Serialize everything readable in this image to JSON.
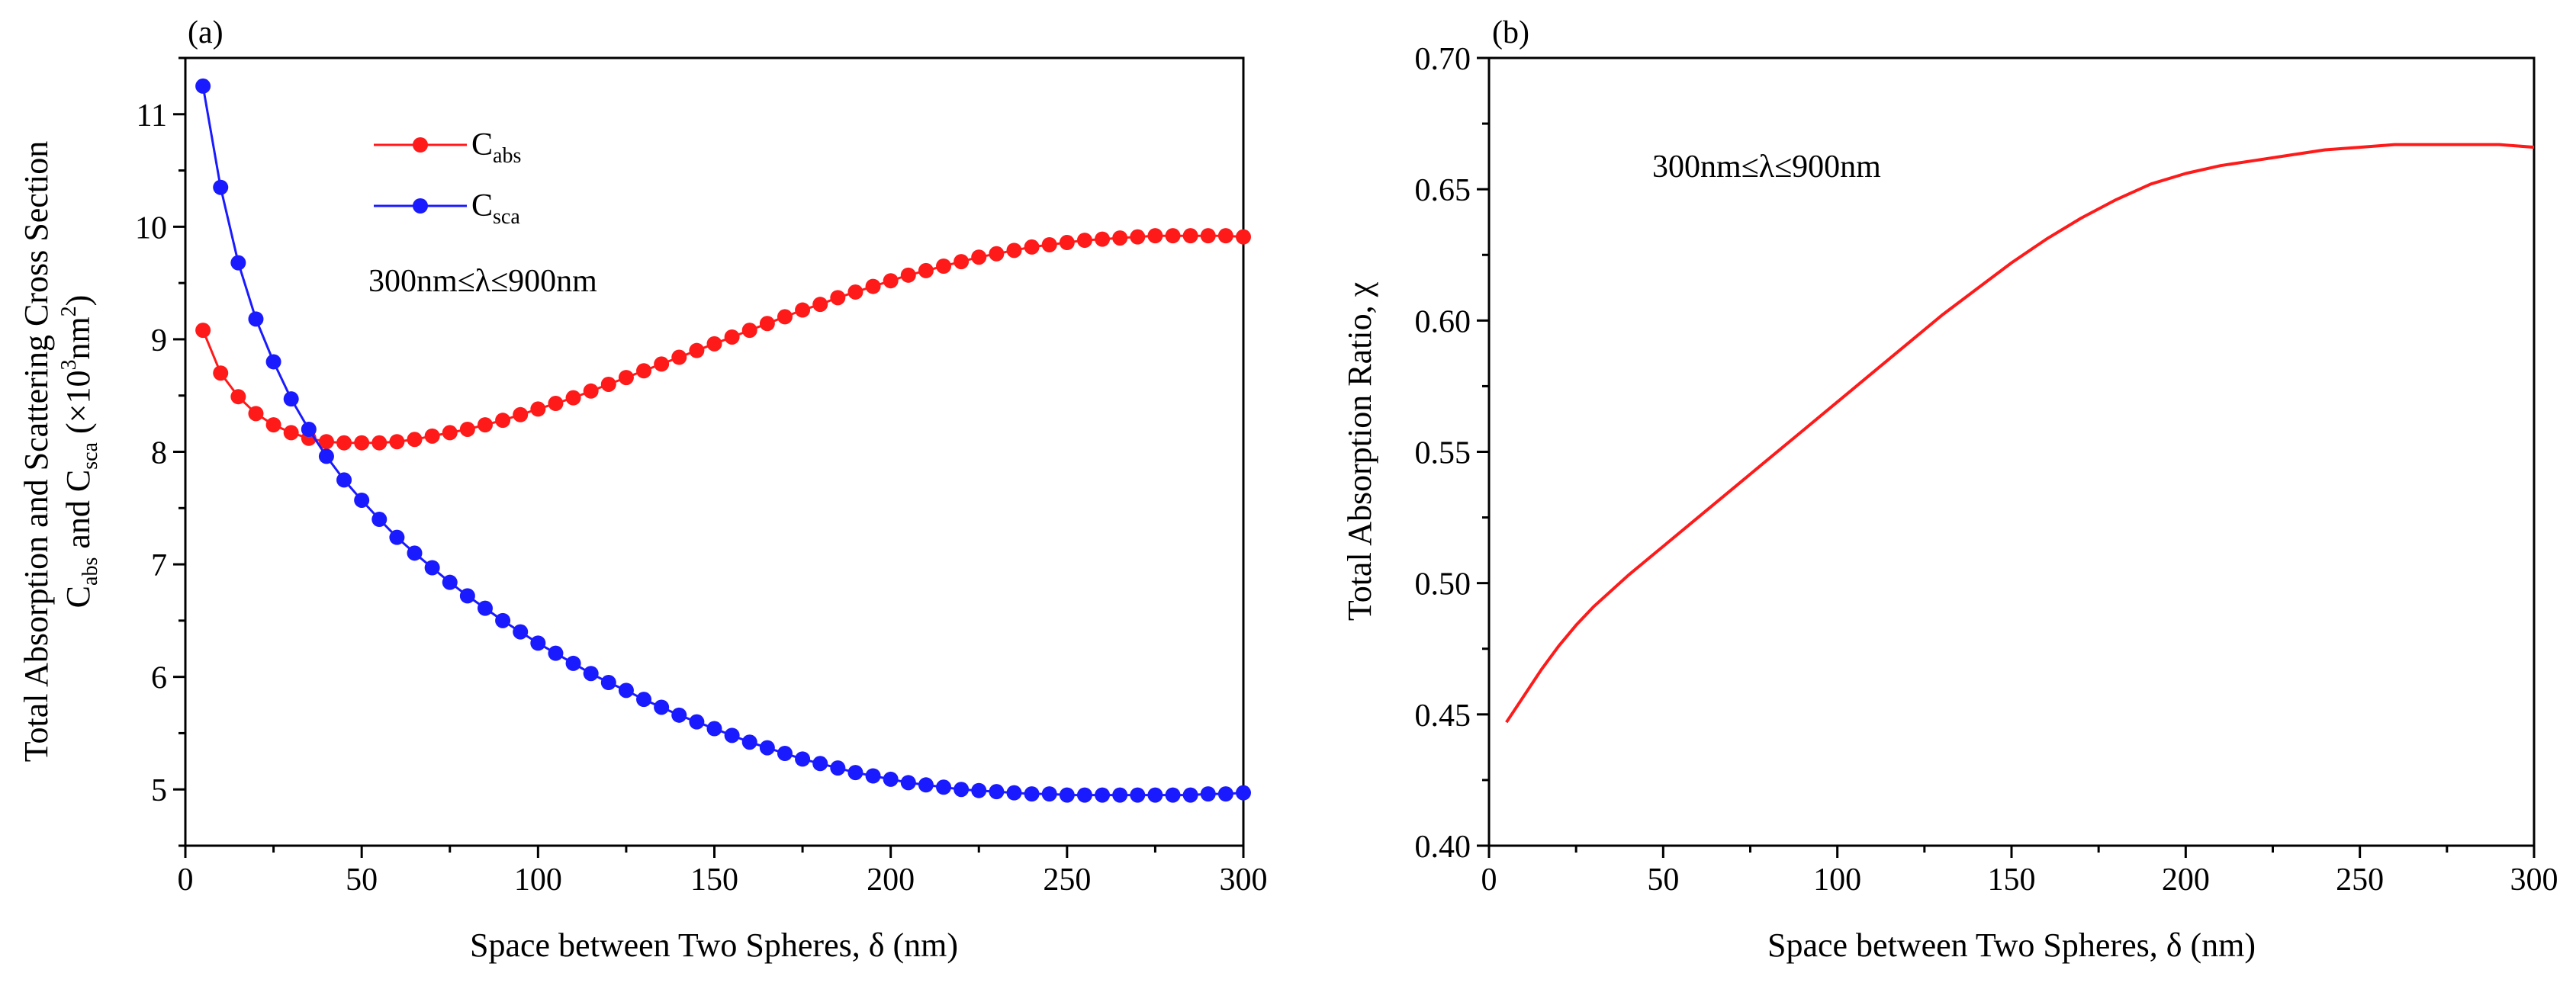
{
  "chart_data": [
    {
      "type": "line",
      "panel": "(a)",
      "xlabel": "Space between Two Spheres, δ (nm)",
      "ylabel_line1": "Total Absorption and Scattering Cross Section",
      "ylabel_line2": {
        "c1": "C",
        "s1": "abs",
        "and": " and C",
        "s2": "sca",
        "units_open": " (×10",
        "exp1": "3",
        "nm": "nm",
        "exp2": "2",
        "units_close": ")"
      },
      "xlim": [
        0,
        300
      ],
      "ylim": [
        4.5,
        11.5
      ],
      "xticks": [
        0,
        50,
        100,
        150,
        200,
        250,
        300
      ],
      "yticks": [
        5,
        6,
        7,
        8,
        9,
        10,
        11
      ],
      "annotation": "300nm≤λ≤900nm",
      "legend": [
        {
          "main": "C",
          "sub": "abs",
          "color": "#ff1a1a"
        },
        {
          "main": "C",
          "sub": "sca",
          "color": "#1a1aff"
        }
      ],
      "x": [
        5,
        10,
        15,
        20,
        25,
        30,
        35,
        40,
        45,
        50,
        55,
        60,
        65,
        70,
        75,
        80,
        85,
        90,
        95,
        100,
        105,
        110,
        115,
        120,
        125,
        130,
        135,
        140,
        145,
        150,
        155,
        160,
        165,
        170,
        175,
        180,
        185,
        190,
        195,
        200,
        205,
        210,
        215,
        220,
        225,
        230,
        235,
        240,
        245,
        250,
        255,
        260,
        265,
        270,
        275,
        280,
        285,
        290,
        295,
        300
      ],
      "series": [
        {
          "name": "C_abs",
          "color": "#ff1a1a",
          "values": [
            9.08,
            8.7,
            8.49,
            8.34,
            8.24,
            8.17,
            8.12,
            8.09,
            8.08,
            8.08,
            8.08,
            8.09,
            8.11,
            8.14,
            8.17,
            8.2,
            8.24,
            8.28,
            8.33,
            8.38,
            8.43,
            8.48,
            8.54,
            8.6,
            8.66,
            8.72,
            8.78,
            8.84,
            8.9,
            8.96,
            9.02,
            9.08,
            9.14,
            9.2,
            9.26,
            9.31,
            9.37,
            9.42,
            9.47,
            9.52,
            9.57,
            9.61,
            9.65,
            9.69,
            9.73,
            9.76,
            9.79,
            9.82,
            9.84,
            9.86,
            9.88,
            9.89,
            9.9,
            9.91,
            9.92,
            9.92,
            9.92,
            9.92,
            9.92,
            9.91
          ]
        },
        {
          "name": "C_sca",
          "color": "#1a1aff",
          "values": [
            11.25,
            10.35,
            9.68,
            9.18,
            8.8,
            8.47,
            8.2,
            7.96,
            7.75,
            7.57,
            7.4,
            7.24,
            7.1,
            6.97,
            6.84,
            6.72,
            6.61,
            6.5,
            6.4,
            6.3,
            6.21,
            6.12,
            6.03,
            5.95,
            5.88,
            5.8,
            5.73,
            5.66,
            5.6,
            5.54,
            5.48,
            5.42,
            5.37,
            5.32,
            5.27,
            5.23,
            5.19,
            5.15,
            5.12,
            5.09,
            5.06,
            5.04,
            5.02,
            5.0,
            4.99,
            4.98,
            4.97,
            4.96,
            4.96,
            4.95,
            4.95,
            4.95,
            4.95,
            4.95,
            4.95,
            4.95,
            4.95,
            4.96,
            4.96,
            4.97
          ]
        }
      ]
    },
    {
      "type": "line",
      "panel": "(b)",
      "xlabel": "Space between Two Spheres, δ (nm)",
      "ylabel": "Total Absorption Ratio, χ",
      "xlim": [
        0,
        300
      ],
      "ylim": [
        0.4,
        0.7
      ],
      "xticks": [
        0,
        50,
        100,
        150,
        200,
        250,
        300
      ],
      "yticks": [
        "0.40",
        "0.45",
        "0.50",
        "0.55",
        "0.60",
        "0.65",
        "0.70"
      ],
      "annotation": "300nm≤λ≤900nm",
      "x": [
        5,
        10,
        15,
        20,
        25,
        30,
        40,
        50,
        60,
        70,
        80,
        90,
        100,
        110,
        120,
        130,
        140,
        150,
        160,
        170,
        180,
        190,
        200,
        210,
        220,
        230,
        240,
        250,
        260,
        270,
        280,
        290,
        300
      ],
      "series": [
        {
          "name": "chi",
          "color": "#ff1a1a",
          "values": [
            0.447,
            0.457,
            0.467,
            0.476,
            0.484,
            0.491,
            0.503,
            0.514,
            0.525,
            0.536,
            0.547,
            0.558,
            0.569,
            0.58,
            0.591,
            0.602,
            0.612,
            0.622,
            0.631,
            0.639,
            0.646,
            0.652,
            0.656,
            0.659,
            0.661,
            0.663,
            0.665,
            0.666,
            0.667,
            0.667,
            0.667,
            0.667,
            0.666
          ]
        }
      ]
    }
  ]
}
